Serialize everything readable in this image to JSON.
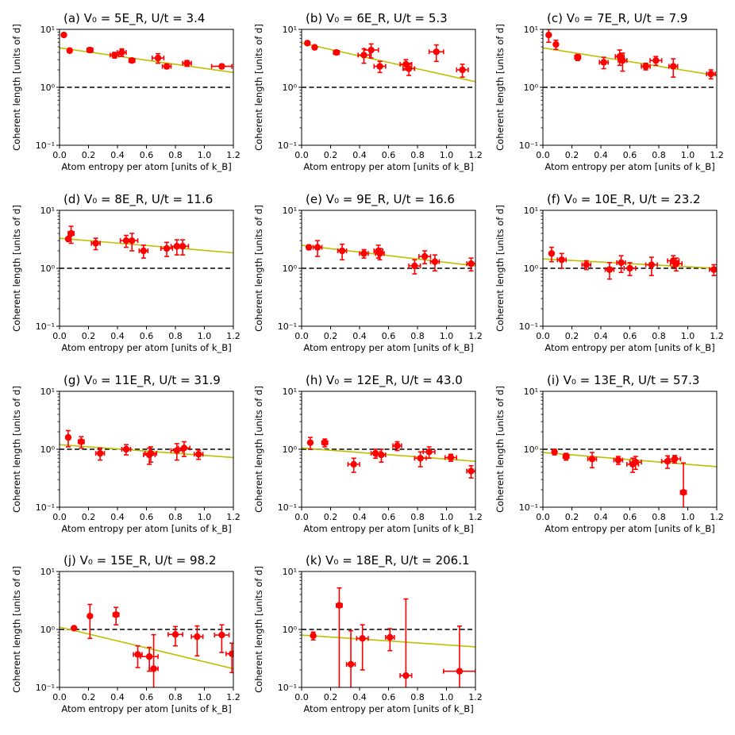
{
  "colors": {
    "marker": "#ff0000",
    "fit": "#bfbf00",
    "reference": "#000000"
  },
  "chart_data": {
    "type": "scatter",
    "figure_title": "",
    "xlabel": "Atom entropy per atom [units of k_B]",
    "ylabel": "Coherent length [units of d]",
    "x_ticks": [
      "0.0",
      "0.2",
      "0.4",
      "0.6",
      "0.8",
      "1.0",
      "1.2"
    ],
    "y_ticks": [
      "10⁻¹",
      "10⁰",
      "10¹"
    ],
    "xlim": [
      0,
      1.2
    ],
    "ylim": [
      0.1,
      10
    ],
    "yscale": "log",
    "reference_line": {
      "y": 1,
      "style": "dashed"
    },
    "panels": [
      {
        "label": "(a)",
        "title": "(a) V₀ = 5E_R, U/t = 3.4",
        "points": [
          [
            0.03,
            8.0,
            0,
            0
          ],
          [
            0.07,
            4.3,
            0,
            0.2
          ],
          [
            0.21,
            4.4,
            0.02,
            0.4
          ],
          [
            0.38,
            3.6,
            0.03,
            0.4
          ],
          [
            0.43,
            4.0,
            0.03,
            0.6
          ],
          [
            0.5,
            2.9,
            0.02,
            0.2
          ],
          [
            0.68,
            3.2,
            0.04,
            0.6
          ],
          [
            0.74,
            2.3,
            0.03,
            0.2
          ],
          [
            0.88,
            2.6,
            0.03,
            0.3
          ],
          [
            1.12,
            2.3,
            0.07,
            0.2
          ]
        ],
        "fit": [
          [
            0,
            4.8
          ],
          [
            1.2,
            1.8
          ]
        ]
      },
      {
        "label": "(b)",
        "title": "(b) V₀ = 6E_R, U/t = 5.3",
        "points": [
          [
            0.04,
            5.8,
            0,
            0
          ],
          [
            0.09,
            4.9,
            0,
            0.2
          ],
          [
            0.24,
            4.0,
            0.02,
            0.3
          ],
          [
            0.43,
            3.6,
            0.04,
            1.0
          ],
          [
            0.48,
            4.4,
            0.05,
            1.2
          ],
          [
            0.54,
            2.3,
            0.04,
            0.5
          ],
          [
            0.72,
            2.5,
            0.04,
            0.5
          ],
          [
            0.74,
            2.1,
            0.04,
            0.5
          ],
          [
            0.93,
            4.1,
            0.05,
            1.3
          ],
          [
            1.11,
            2.0,
            0.04,
            0.5
          ]
        ],
        "fit": [
          [
            0,
            5.8
          ],
          [
            1.2,
            1.25
          ]
        ]
      },
      {
        "label": "(c)",
        "title": "(c) V₀ = 7E_R, U/t = 7.9",
        "points": [
          [
            0.04,
            8.0,
            0,
            2.0
          ],
          [
            0.09,
            5.5,
            0,
            1.0
          ],
          [
            0.24,
            3.3,
            0.02,
            0.4
          ],
          [
            0.42,
            2.7,
            0.03,
            0.6
          ],
          [
            0.53,
            3.4,
            0.03,
            1.0
          ],
          [
            0.55,
            2.9,
            0.03,
            1.0
          ],
          [
            0.71,
            2.3,
            0.03,
            0.3
          ],
          [
            0.78,
            2.9,
            0.04,
            0.5
          ],
          [
            0.9,
            2.3,
            0.03,
            0.8
          ],
          [
            1.16,
            1.7,
            0.03,
            0.3
          ]
        ],
        "fit": [
          [
            0,
            4.8
          ],
          [
            1.2,
            1.6
          ]
        ]
      },
      {
        "label": "(d)",
        "title": "(d) V₀ = 8E_R, U/t = 11.6",
        "points": [
          [
            0.06,
            3.2,
            0,
            0
          ],
          [
            0.08,
            4.0,
            0.02,
            1.3
          ],
          [
            0.25,
            2.7,
            0.03,
            0.6
          ],
          [
            0.46,
            3.0,
            0.04,
            0.7
          ],
          [
            0.5,
            3.0,
            0.04,
            1.0
          ],
          [
            0.58,
            2.0,
            0.03,
            0.5
          ],
          [
            0.74,
            2.2,
            0.04,
            0.6
          ],
          [
            0.81,
            2.4,
            0.04,
            0.7
          ],
          [
            0.85,
            2.4,
            0.04,
            0.7
          ]
        ],
        "fit": [
          [
            0,
            3.3
          ],
          [
            1.2,
            1.85
          ]
        ]
      },
      {
        "label": "(e)",
        "title": "(e) V₀ = 9E_R, U/t = 16.6",
        "points": [
          [
            0.05,
            2.3,
            0,
            0.2
          ],
          [
            0.11,
            2.3,
            0.03,
            0.7
          ],
          [
            0.28,
            2.0,
            0.03,
            0.6
          ],
          [
            0.43,
            1.8,
            0.03,
            0.3
          ],
          [
            0.53,
            2.0,
            0.03,
            0.5
          ],
          [
            0.54,
            1.8,
            0.03,
            0.4
          ],
          [
            0.78,
            1.1,
            0.04,
            0.3
          ],
          [
            0.85,
            1.6,
            0.04,
            0.4
          ],
          [
            0.92,
            1.3,
            0.03,
            0.4
          ],
          [
            1.17,
            1.2,
            0.03,
            0.3
          ]
        ],
        "fit": [
          [
            0,
            2.5
          ],
          [
            1.2,
            1.1
          ]
        ]
      },
      {
        "label": "(f)",
        "title": "(f) V₀ = 10E_R, U/t = 23.2",
        "points": [
          [
            0.06,
            1.8,
            0,
            0.5
          ],
          [
            0.13,
            1.4,
            0.03,
            0.4
          ],
          [
            0.3,
            1.15,
            0.03,
            0.2
          ],
          [
            0.46,
            0.95,
            0.03,
            0.3
          ],
          [
            0.54,
            1.25,
            0.03,
            0.4
          ],
          [
            0.6,
            1.0,
            0.04,
            0.25
          ],
          [
            0.75,
            1.15,
            0.04,
            0.4
          ],
          [
            0.9,
            1.35,
            0.04,
            0.3
          ],
          [
            0.92,
            1.2,
            0.04,
            0.3
          ],
          [
            1.18,
            0.95,
            0.03,
            0.2
          ]
        ],
        "fit": [
          [
            0,
            1.45
          ],
          [
            1.2,
            1.0
          ]
        ]
      },
      {
        "label": "(g)",
        "title": "(g) V₀ = 11E_R, U/t = 31.9",
        "points": [
          [
            0.06,
            1.6,
            0,
            0.5
          ],
          [
            0.15,
            1.35,
            0.02,
            0.3
          ],
          [
            0.28,
            0.85,
            0.03,
            0.2
          ],
          [
            0.46,
            1.0,
            0.03,
            0.2
          ],
          [
            0.62,
            0.8,
            0.04,
            0.25
          ],
          [
            0.63,
            0.85,
            0.04,
            0.25
          ],
          [
            0.81,
            0.95,
            0.04,
            0.3
          ],
          [
            0.86,
            1.05,
            0.04,
            0.3
          ],
          [
            0.96,
            0.82,
            0.03,
            0.15
          ]
        ],
        "fit": [
          [
            0,
            1.2
          ],
          [
            1.2,
            0.72
          ]
        ]
      },
      {
        "label": "(h)",
        "title": "(h) V₀ = 12E_R, U/t = 43.0",
        "points": [
          [
            0.06,
            1.3,
            0,
            0.3
          ],
          [
            0.16,
            1.3,
            0.02,
            0.2
          ],
          [
            0.36,
            0.55,
            0.04,
            0.15
          ],
          [
            0.51,
            0.85,
            0.03,
            0.15
          ],
          [
            0.55,
            0.8,
            0.03,
            0.2
          ],
          [
            0.66,
            1.15,
            0.03,
            0.2
          ],
          [
            0.82,
            0.7,
            0.04,
            0.2
          ],
          [
            0.88,
            0.9,
            0.04,
            0.2
          ],
          [
            1.03,
            0.72,
            0.04,
            0.1
          ],
          [
            1.17,
            0.42,
            0.03,
            0.1
          ]
        ],
        "fit": [
          [
            0,
            1.05
          ],
          [
            1.2,
            0.62
          ]
        ]
      },
      {
        "label": "(i)",
        "title": "(i) V₀ = 13E_R, U/t = 57.3",
        "points": [
          [
            0.08,
            0.9,
            0,
            0.1
          ],
          [
            0.16,
            0.75,
            0.02,
            0.1
          ],
          [
            0.34,
            0.68,
            0.03,
            0.2
          ],
          [
            0.52,
            0.65,
            0.03,
            0.1
          ],
          [
            0.62,
            0.55,
            0.04,
            0.15
          ],
          [
            0.64,
            0.6,
            0.04,
            0.15
          ],
          [
            0.86,
            0.62,
            0.04,
            0.15
          ],
          [
            0.91,
            0.68,
            0.04,
            0.1
          ],
          [
            0.97,
            0.18,
            0.02,
            0.4
          ]
        ],
        "fit": [
          [
            0,
            0.88
          ],
          [
            1.2,
            0.5
          ]
        ]
      },
      {
        "label": "(j)",
        "title": "(j) V₀ = 15E_R, U/t = 98.2",
        "points": [
          [
            0.1,
            1.05,
            0,
            0
          ],
          [
            0.21,
            1.7,
            0,
            1.0
          ],
          [
            0.39,
            1.8,
            0.02,
            0.6
          ],
          [
            0.54,
            0.37,
            0.03,
            0.15
          ],
          [
            0.62,
            0.34,
            0.06,
            0.15
          ],
          [
            0.65,
            0.21,
            0.03,
            0.6
          ],
          [
            0.8,
            0.82,
            0.05,
            0.3
          ],
          [
            0.95,
            0.75,
            0.04,
            0.4
          ],
          [
            1.12,
            0.8,
            0.05,
            0.4
          ],
          [
            1.19,
            0.38,
            0.04,
            0.2
          ]
        ],
        "fit": [
          [
            0,
            1.1
          ],
          [
            1.2,
            0.21
          ]
        ]
      },
      {
        "label": "(k)",
        "title": "(k) V₀ = 18E_R, U/t = 206.1",
        "points": [
          [
            0.08,
            0.78,
            0,
            0.12
          ],
          [
            0.26,
            2.6,
            0.02,
            2.6
          ],
          [
            0.34,
            0.25,
            0.03,
            0.7
          ],
          [
            0.42,
            0.7,
            0.04,
            0.5
          ],
          [
            0.61,
            0.73,
            0.03,
            0.3
          ],
          [
            0.72,
            0.16,
            0.04,
            3.2
          ],
          [
            1.09,
            0.19,
            0.11,
            0.95
          ]
        ],
        "fit": [
          [
            0,
            0.8
          ],
          [
            1.2,
            0.5
          ]
        ]
      }
    ]
  }
}
